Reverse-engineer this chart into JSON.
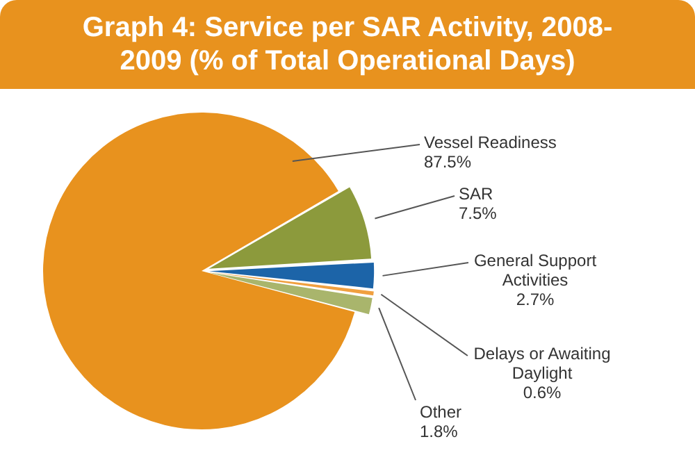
{
  "chart_data": {
    "type": "pie",
    "title": "Graph 4: Service per SAR Activity, 2008-2009 (% of Total Operational Days)",
    "categories": [
      "Vessel Readiness",
      "SAR",
      "General Support Activities",
      "Delays or Awaiting Daylight",
      "Other"
    ],
    "values": [
      87.5,
      7.5,
      2.7,
      0.6,
      1.8
    ],
    "colors": [
      "#e8921e",
      "#8c9a3c",
      "#1c64a8",
      "#f0a040",
      "#a9b56c"
    ],
    "value_labels": [
      "87.5%",
      "7.5%",
      "2.7%",
      "0.6%",
      "1.8%"
    ],
    "legend": false
  }
}
